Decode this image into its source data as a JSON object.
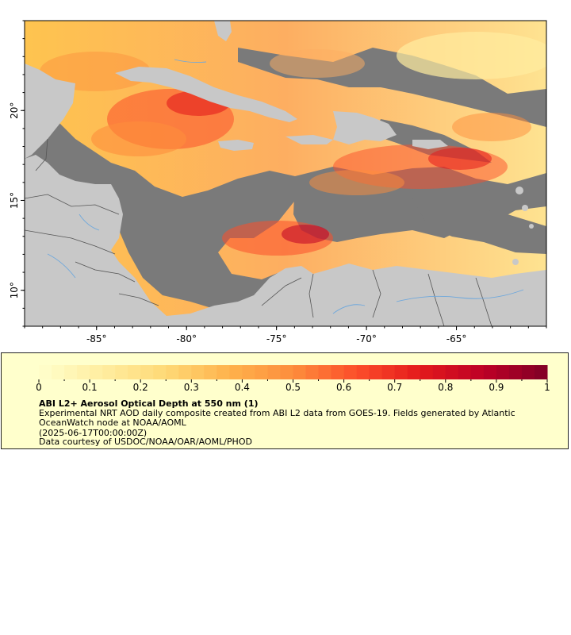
{
  "map": {
    "lat_ticks": [
      {
        "value": 10,
        "label": "10°"
      },
      {
        "value": 15,
        "label": "15°"
      },
      {
        "value": 20,
        "label": "20°"
      }
    ],
    "lon_ticks": [
      {
        "value": -85,
        "label": "-85°"
      },
      {
        "value": -80,
        "label": "-80°"
      },
      {
        "value": -75,
        "label": "-75°"
      },
      {
        "value": -70,
        "label": "-70°"
      },
      {
        "value": -65,
        "label": "-65°"
      }
    ],
    "lon_range": [
      -89,
      -60
    ],
    "lat_range": [
      8,
      25
    ],
    "colors": {
      "land": "#c8c8c8",
      "no_data": "#7a7a7a",
      "rivers": "#6fa8dc",
      "borders": "#555555"
    }
  },
  "colorbar": {
    "min": 0,
    "max": 1,
    "tick_labels": [
      "0",
      "0.1",
      "0.2",
      "0.3",
      "0.4",
      "0.5",
      "0.6",
      "0.7",
      "0.8",
      "0.9",
      "1"
    ],
    "colors": [
      "#ffffcc",
      "#ffeda0",
      "#fed976",
      "#feb24c",
      "#fd8d3c",
      "#fc4e2a",
      "#e31a1c",
      "#bd0026",
      "#800026"
    ]
  },
  "legend": {
    "title": "ABI L2+ Aerosol Optical Depth at 550 nm (1)",
    "description": "Experimental NRT AOD daily composite created from ABI L2 data from GOES-19. Fields generated by Atlantic OceanWatch node at NOAA/AOML",
    "date": "(2025-06-17T00:00:00Z)",
    "credit": "Data courtesy of USDOC/NOAA/OAR/AOML/PHOD"
  }
}
